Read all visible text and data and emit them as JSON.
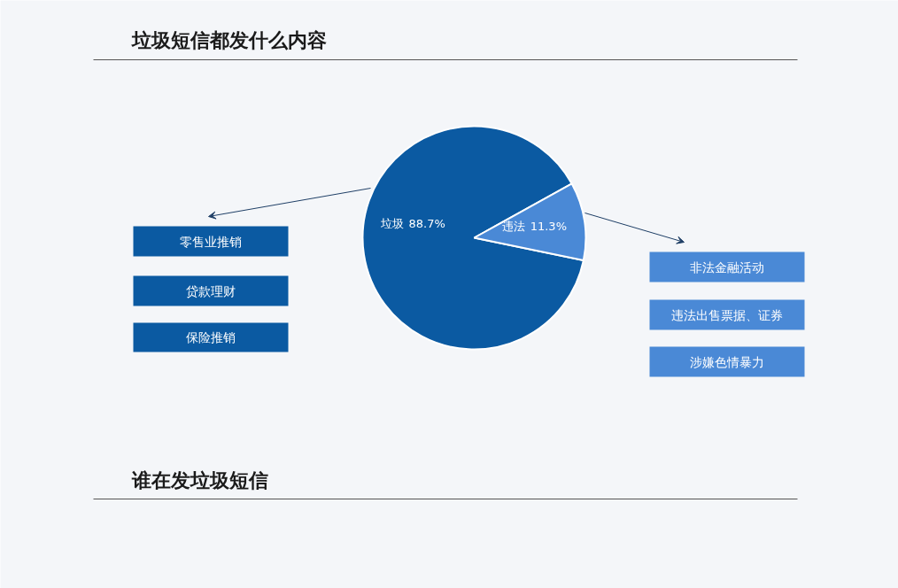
{
  "chart_data": {
    "type": "pie",
    "title": "垃圾短信都发什么内容",
    "categories": [
      "垃圾",
      "违法"
    ],
    "values": [
      88.7,
      11.3
    ],
    "colors": [
      "#0b5aa2",
      "#4a89d6"
    ],
    "value_labels": [
      "88.7%",
      "11.3%"
    ],
    "annotations": [
      "零售业推销",
      "贷款理财",
      "保险推销",
      "非法金融活动",
      "违法出售票据、证券",
      "涉嫌色情暴力",
      "谁在发垃圾短信"
    ]
  }
}
